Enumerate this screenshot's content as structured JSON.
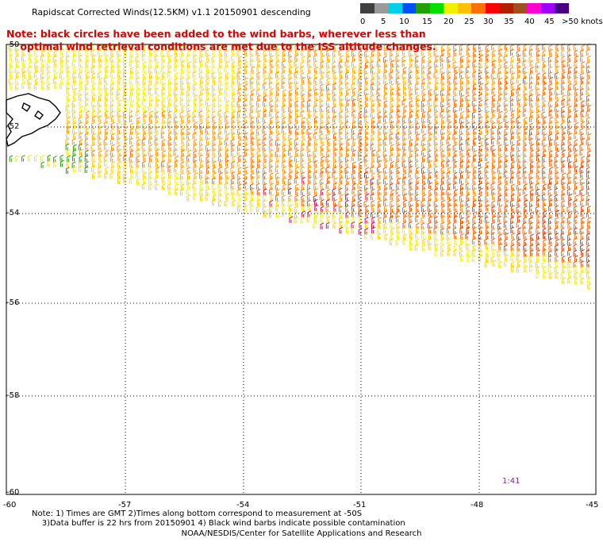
{
  "header": {
    "title": "Rapidscat Corrected Winds(12.5KM) v1.1 20150901 descending",
    "note": "Note: black circles have been added to the wind barbs, wherever less than\n    optimal wind retrieval conditions are met due to the ISS altitude changes."
  },
  "legend": {
    "unit": "knots",
    "colors": [
      "#404040",
      "#9a9a9a",
      "#00d0e8",
      "#0050ff",
      "#22a000",
      "#00e000",
      "#f0f000",
      "#ffc000",
      "#ff7000",
      "#ff0000",
      "#b02000",
      "#a05020",
      "#ff00d0",
      "#a000ff",
      "#480080"
    ],
    "labels": [
      "0",
      "5",
      "10",
      "15",
      "20",
      "25",
      "30",
      "35",
      "40",
      "45",
      ">50"
    ]
  },
  "axes": {
    "latitudes": [
      "-50",
      "-52",
      "-54",
      "-56",
      "-58",
      "-60"
    ],
    "longitudes": [
      "-60",
      "-57",
      "-54",
      "-51",
      "-48",
      "-45"
    ]
  },
  "map": {
    "swath_colors": [
      "#f0f000",
      "#ffd000",
      "#ffb000",
      "#ff9000",
      "#ff6a00",
      "#e05000",
      "#c83000"
    ],
    "land_name": "falkland-islands"
  },
  "timestamp": "1:41",
  "footer": {
    "notes": "Note: 1) Times are GMT 2)Times along bottom correspond to measurement at -50S\n    3)Data buffer is 22 hrs from 20150901 4) Black wind barbs indicate possible contamination",
    "credit": "NOAA/NESDIS/Center for Satellite Applications and Research"
  }
}
